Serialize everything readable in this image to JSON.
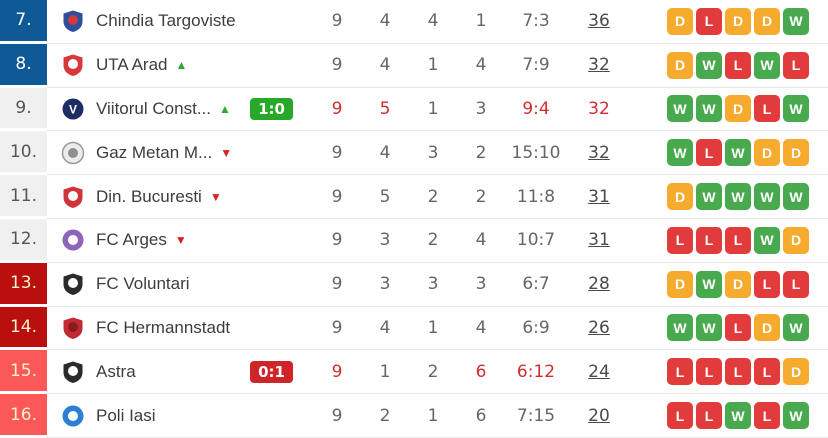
{
  "icons": {
    "up_arrow": "▲",
    "down_arrow": "▼"
  },
  "form_colors": {
    "W": "#48a94e",
    "D": "#f6ab2f",
    "L": "#e23b3b"
  },
  "live_color": "#d12f2f",
  "table": {
    "rows": [
      {
        "pos": "7.",
        "pos_style": "blue",
        "team": "Chindia Targoviste",
        "arrow": "none",
        "badge": null,
        "m": {
          "v": "9",
          "live": false
        },
        "w": {
          "v": "4",
          "live": false
        },
        "d": {
          "v": "4",
          "live": false
        },
        "l": {
          "v": "1",
          "live": false
        },
        "goals": {
          "v": "7:3",
          "live": false
        },
        "pts": {
          "v": "36",
          "live": false
        },
        "form": [
          "D",
          "L",
          "D",
          "D",
          "W"
        ],
        "logo": {
          "shape": "shield",
          "c1": "#2d4f9e",
          "c2": "#cf3b3b",
          "letter": ""
        }
      },
      {
        "pos": "8.",
        "pos_style": "blue",
        "team": "UTA Arad",
        "arrow": "up",
        "badge": null,
        "m": {
          "v": "9",
          "live": false
        },
        "w": {
          "v": "4",
          "live": false
        },
        "d": {
          "v": "1",
          "live": false
        },
        "l": {
          "v": "4",
          "live": false
        },
        "goals": {
          "v": "7:9",
          "live": false
        },
        "pts": {
          "v": "32",
          "live": false
        },
        "form": [
          "D",
          "W",
          "L",
          "W",
          "L"
        ],
        "logo": {
          "shape": "shield",
          "c1": "#d7383b",
          "c2": "#ffffff",
          "letter": ""
        }
      },
      {
        "pos": "9.",
        "pos_style": "gray",
        "team": "Viitorul Const...",
        "arrow": "up",
        "badge": {
          "text": "1:0",
          "color": "#28a828"
        },
        "m": {
          "v": "9",
          "live": true
        },
        "w": {
          "v": "5",
          "live": true
        },
        "d": {
          "v": "1",
          "live": false
        },
        "l": {
          "v": "3",
          "live": false
        },
        "goals": {
          "v": "9:4",
          "live": true
        },
        "pts": {
          "v": "32",
          "live": true
        },
        "form": [
          "W",
          "W",
          "D",
          "L",
          "W"
        ],
        "logo": {
          "shape": "circle",
          "c1": "#1d2c63",
          "c2": "",
          "letter": "V"
        }
      },
      {
        "pos": "10.",
        "pos_style": "gray",
        "team": "Gaz Metan M...",
        "arrow": "down",
        "badge": null,
        "m": {
          "v": "9",
          "live": false
        },
        "w": {
          "v": "4",
          "live": false
        },
        "d": {
          "v": "3",
          "live": false
        },
        "l": {
          "v": "2",
          "live": false
        },
        "goals": {
          "v": "15:10",
          "live": false
        },
        "pts": {
          "v": "32",
          "live": false
        },
        "form": [
          "W",
          "L",
          "W",
          "D",
          "D"
        ],
        "logo": {
          "shape": "circle",
          "c1": "#ececec",
          "c2": "#8f8f8f",
          "letter": "",
          "stroke": "#999999"
        }
      },
      {
        "pos": "11.",
        "pos_style": "gray",
        "team": "Din. Bucuresti",
        "arrow": "down",
        "badge": null,
        "m": {
          "v": "9",
          "live": false
        },
        "w": {
          "v": "5",
          "live": false
        },
        "d": {
          "v": "2",
          "live": false
        },
        "l": {
          "v": "2",
          "live": false
        },
        "goals": {
          "v": "11:8",
          "live": false
        },
        "pts": {
          "v": "31",
          "live": false
        },
        "form": [
          "D",
          "W",
          "W",
          "W",
          "W"
        ],
        "logo": {
          "shape": "shield",
          "c1": "#d03438",
          "c2": "#ffffff",
          "letter": ""
        }
      },
      {
        "pos": "12.",
        "pos_style": "gray",
        "team": "FC Arges",
        "arrow": "down",
        "badge": null,
        "m": {
          "v": "9",
          "live": false
        },
        "w": {
          "v": "3",
          "live": false
        },
        "d": {
          "v": "2",
          "live": false
        },
        "l": {
          "v": "4",
          "live": false
        },
        "goals": {
          "v": "10:7",
          "live": false
        },
        "pts": {
          "v": "31",
          "live": false
        },
        "form": [
          "L",
          "L",
          "L",
          "W",
          "D"
        ],
        "logo": {
          "shape": "circle",
          "c1": "#8d64b8",
          "c2": "#ffffff",
          "letter": ""
        }
      },
      {
        "pos": "13.",
        "pos_style": "darkred",
        "team": "FC Voluntari",
        "arrow": "none",
        "badge": null,
        "m": {
          "v": "9",
          "live": false
        },
        "w": {
          "v": "3",
          "live": false
        },
        "d": {
          "v": "3",
          "live": false
        },
        "l": {
          "v": "3",
          "live": false
        },
        "goals": {
          "v": "6:7",
          "live": false
        },
        "pts": {
          "v": "28",
          "live": false
        },
        "form": [
          "D",
          "W",
          "D",
          "L",
          "L"
        ],
        "logo": {
          "shape": "shield",
          "c1": "#2b2b2b",
          "c2": "#ffffff",
          "letter": ""
        }
      },
      {
        "pos": "14.",
        "pos_style": "darkred",
        "team": "FC Hermannstadt",
        "arrow": "none",
        "badge": null,
        "m": {
          "v": "9",
          "live": false
        },
        "w": {
          "v": "4",
          "live": false
        },
        "d": {
          "v": "1",
          "live": false
        },
        "l": {
          "v": "4",
          "live": false
        },
        "goals": {
          "v": "6:9",
          "live": false
        },
        "pts": {
          "v": "26",
          "live": false
        },
        "form": [
          "W",
          "W",
          "L",
          "D",
          "W"
        ],
        "logo": {
          "shape": "shield",
          "c1": "#c22a31",
          "c2": "#8a1a1e",
          "letter": ""
        }
      },
      {
        "pos": "15.",
        "pos_style": "lightred",
        "team": "Astra",
        "arrow": "none",
        "badge": {
          "text": "0:1",
          "color": "#cf2529"
        },
        "m": {
          "v": "9",
          "live": true
        },
        "w": {
          "v": "1",
          "live": false
        },
        "d": {
          "v": "2",
          "live": false
        },
        "l": {
          "v": "6",
          "live": true
        },
        "goals": {
          "v": "6:12",
          "live": true
        },
        "pts": {
          "v": "24",
          "live": false
        },
        "form": [
          "L",
          "L",
          "L",
          "L",
          "D"
        ],
        "logo": {
          "shape": "shield",
          "c1": "#2b2b2b",
          "c2": "#ffffff",
          "letter": ""
        }
      },
      {
        "pos": "16.",
        "pos_style": "lightred",
        "team": "Poli Iasi",
        "arrow": "none",
        "badge": null,
        "m": {
          "v": "9",
          "live": false
        },
        "w": {
          "v": "2",
          "live": false
        },
        "d": {
          "v": "1",
          "live": false
        },
        "l": {
          "v": "6",
          "live": false
        },
        "goals": {
          "v": "7:15",
          "live": false
        },
        "pts": {
          "v": "20",
          "live": false
        },
        "form": [
          "L",
          "L",
          "W",
          "L",
          "W"
        ],
        "logo": {
          "shape": "circle",
          "c1": "#2f7fd0",
          "c2": "#ffffff",
          "letter": ""
        }
      }
    ]
  }
}
